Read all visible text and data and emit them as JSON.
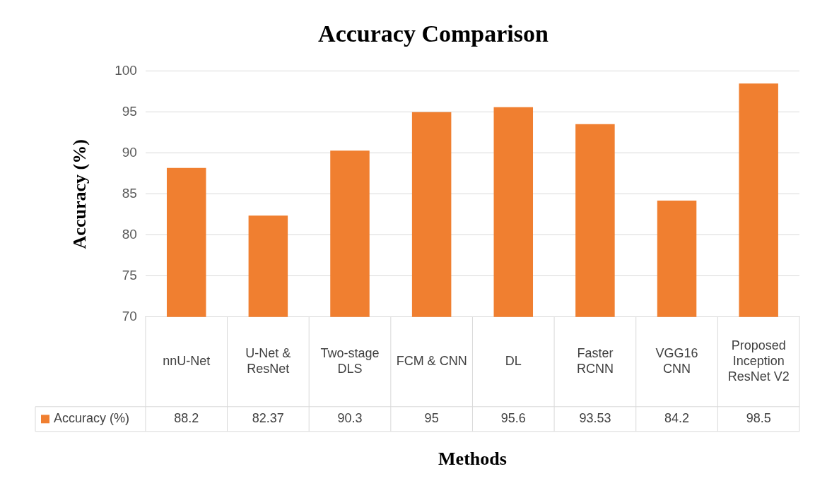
{
  "chart_data": {
    "type": "bar",
    "title": "Accuracy Comparison",
    "xlabel": "Methods",
    "ylabel": "Accuracy (%)",
    "categories": [
      "nnU-Net",
      "U-Net & ResNet",
      "Two-stage DLS",
      "FCM & CNN",
      "DL",
      "Faster RCNN",
      "VGG16 CNN",
      "Proposed Inception ResNet V2"
    ],
    "series": [
      {
        "name": "Accuracy (%)",
        "color": "#f07f30",
        "values": [
          88.2,
          82.37,
          90.3,
          95,
          95.6,
          93.53,
          84.2,
          98.5
        ]
      }
    ],
    "ylim": [
      70,
      100
    ],
    "yticks": [
      70,
      75,
      80,
      85,
      90,
      95,
      100
    ],
    "grid": "y",
    "legend": "bottom",
    "data_labels": true
  }
}
